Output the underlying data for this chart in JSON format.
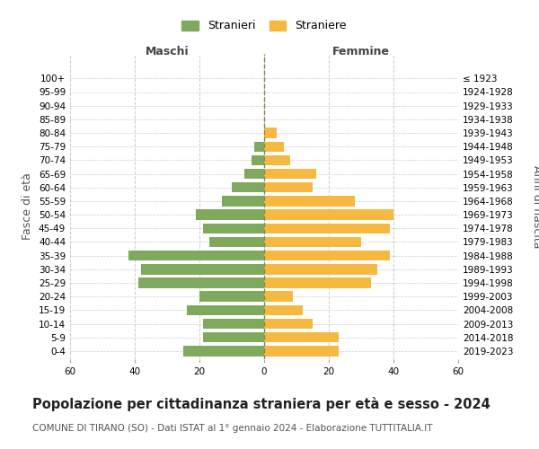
{
  "age_groups": [
    "0-4",
    "5-9",
    "10-14",
    "15-19",
    "20-24",
    "25-29",
    "30-34",
    "35-39",
    "40-44",
    "45-49",
    "50-54",
    "55-59",
    "60-64",
    "65-69",
    "70-74",
    "75-79",
    "80-84",
    "85-89",
    "90-94",
    "95-99",
    "100+"
  ],
  "birth_years": [
    "2019-2023",
    "2014-2018",
    "2009-2013",
    "2004-2008",
    "1999-2003",
    "1994-1998",
    "1989-1993",
    "1984-1988",
    "1979-1983",
    "1974-1978",
    "1969-1973",
    "1964-1968",
    "1959-1963",
    "1954-1958",
    "1949-1953",
    "1944-1948",
    "1939-1943",
    "1934-1938",
    "1929-1933",
    "1924-1928",
    "≤ 1923"
  ],
  "males": [
    25,
    19,
    19,
    24,
    20,
    39,
    38,
    42,
    17,
    19,
    21,
    13,
    10,
    6,
    4,
    3,
    0,
    0,
    0,
    0,
    0
  ],
  "females": [
    23,
    23,
    15,
    12,
    9,
    33,
    35,
    39,
    30,
    39,
    40,
    28,
    15,
    16,
    8,
    6,
    4,
    0,
    0,
    0,
    0
  ],
  "male_color": "#7faa5e",
  "female_color": "#f5b942",
  "center_line_color": "#888844",
  "grid_color": "#cccccc",
  "bg_color": "#ffffff",
  "bar_height": 0.75,
  "xlim": 60,
  "title": "Popolazione per cittadinanza straniera per età e sesso - 2024",
  "subtitle": "COMUNE DI TIRANO (SO) - Dati ISTAT al 1° gennaio 2024 - Elaborazione TUTTITALIA.IT",
  "left_header": "Maschi",
  "right_header": "Femmine",
  "left_ylabel": "Fasce di età",
  "right_ylabel": "Anni di nascita",
  "legend_male": "Stranieri",
  "legend_female": "Straniere",
  "title_fontsize": 10.5,
  "subtitle_fontsize": 7.5,
  "tick_fontsize": 7.5,
  "label_fontsize": 9
}
